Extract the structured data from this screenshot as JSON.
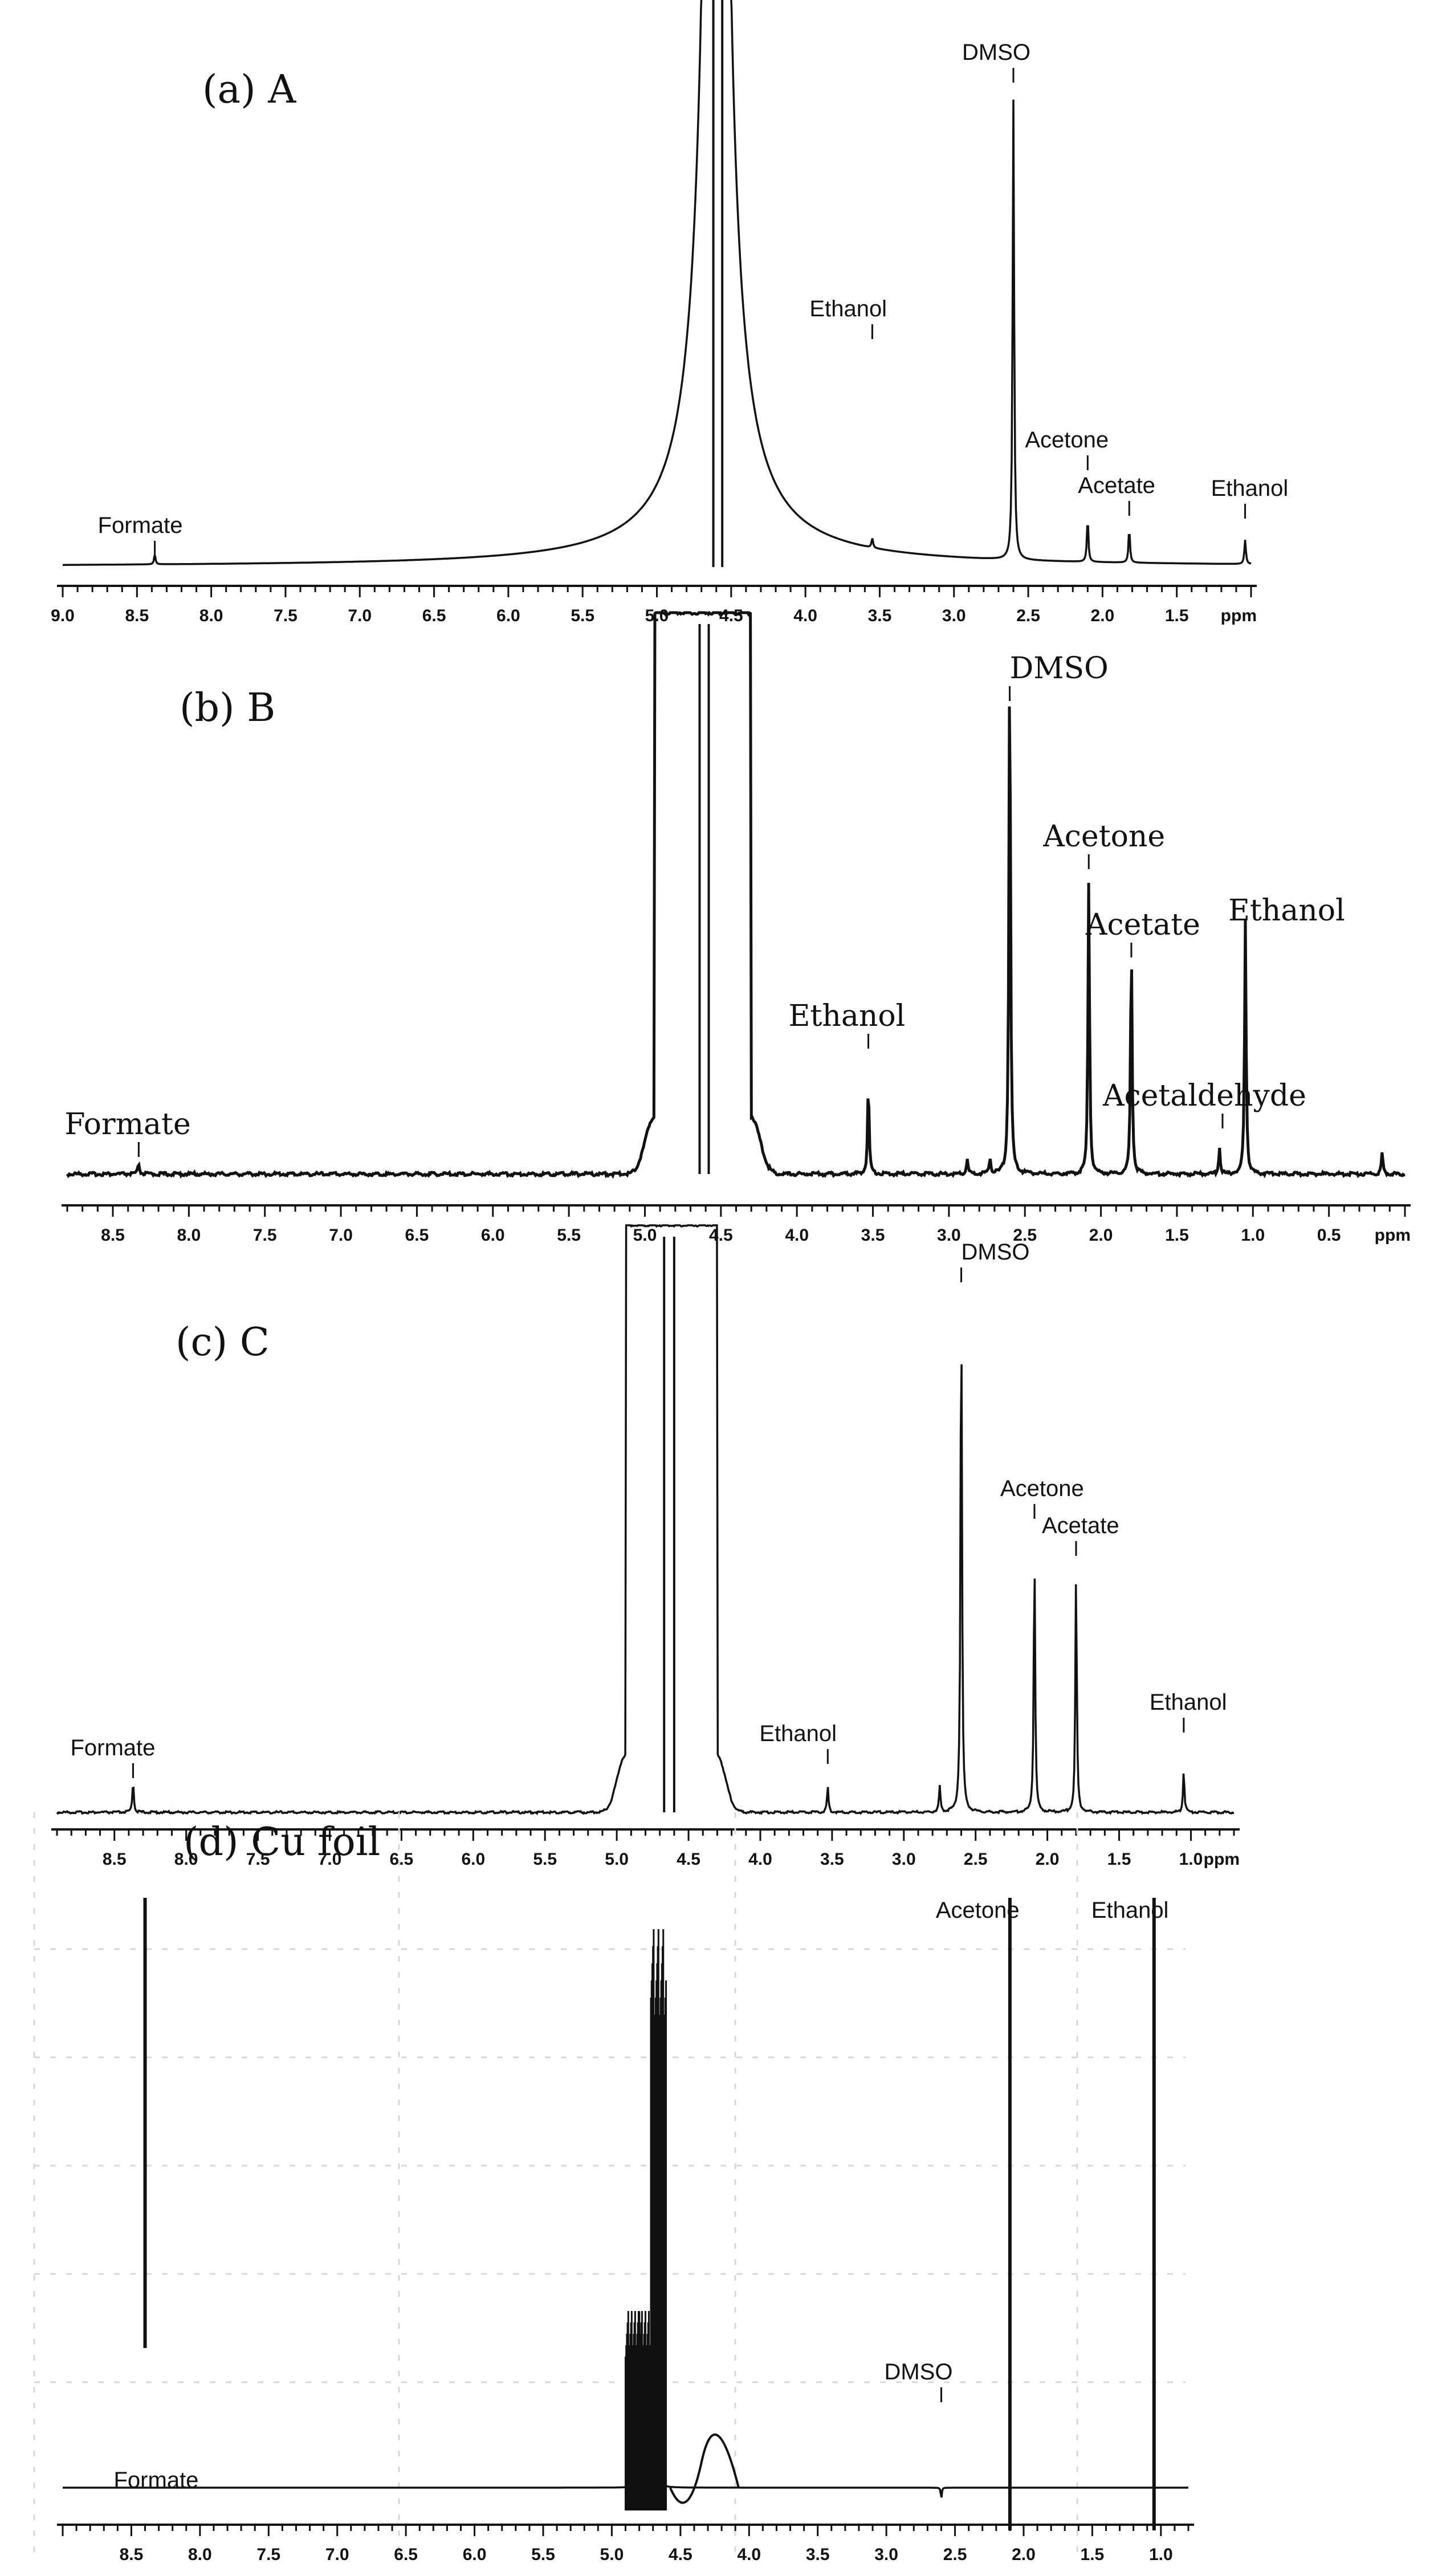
{
  "figure": {
    "panels": [
      {
        "id": "a",
        "label": "(a) A",
        "tick_unit": "ppm"
      },
      {
        "id": "b",
        "label": "(b) B",
        "tick_unit": "ppm"
      },
      {
        "id": "c",
        "label": "(c) C",
        "tick_unit": "ppm"
      },
      {
        "id": "d",
        "label": "(d) Cu foil",
        "tick_unit": ""
      }
    ]
  },
  "chart_data": [
    {
      "type": "line",
      "title": "(a) A",
      "xlabel": "ppm",
      "x_reversed": true,
      "xlim": [
        9.0,
        1.0
      ],
      "major_ticks": [
        9.0,
        8.5,
        8.0,
        7.5,
        7.0,
        6.5,
        6.0,
        5.5,
        5.0,
        4.5,
        4.0,
        3.5,
        3.0,
        2.5,
        2.0,
        1.5
      ],
      "water_peak_lines_ppm": [
        4.62,
        4.56
      ],
      "annotations": [
        {
          "text": "Formate",
          "x": 8.38
        },
        {
          "text": "Ethanol",
          "x": 3.55
        },
        {
          "text": "DMSO",
          "x": 2.6
        },
        {
          "text": "Acetone",
          "x": 2.1
        },
        {
          "text": "Acetate",
          "x": 1.82
        },
        {
          "text": "Ethanol",
          "x": 1.04
        }
      ],
      "peaks": [
        {
          "x": 8.38,
          "height": 0.02
        },
        {
          "x": 3.55,
          "height": 0.02
        },
        {
          "x": 2.6,
          "height": 0.95
        },
        {
          "x": 2.1,
          "height": 0.09
        },
        {
          "x": 1.82,
          "height": 0.07
        },
        {
          "x": 1.04,
          "height": 0.05
        }
      ]
    },
    {
      "type": "line",
      "title": "(b) B",
      "xlabel": "ppm",
      "x_reversed": true,
      "xlim": [
        8.8,
        0.0
      ],
      "major_ticks": [
        8.5,
        8.0,
        7.5,
        7.0,
        6.5,
        6.0,
        5.5,
        5.0,
        4.5,
        4.0,
        3.5,
        3.0,
        2.5,
        2.0,
        1.5,
        1.0,
        0.5
      ],
      "water_peak_lines_ppm": [
        4.64,
        4.58
      ],
      "annotations": [
        {
          "text": "Formate",
          "x": 8.33
        },
        {
          "text": "Ethanol",
          "x": 3.53
        },
        {
          "text": "DMSO",
          "x": 2.6
        },
        {
          "text": "Acetone",
          "x": 2.08
        },
        {
          "text": "Acetate",
          "x": 1.8
        },
        {
          "text": "Ethanol",
          "x": 1.05
        },
        {
          "text": "Acetaldehyde",
          "x": 1.2
        }
      ],
      "peaks": [
        {
          "x": 8.33,
          "height": 0.02
        },
        {
          "x": 3.53,
          "height": 0.17
        },
        {
          "x": 2.88,
          "height": 0.03
        },
        {
          "x": 2.73,
          "height": 0.03
        },
        {
          "x": 2.6,
          "height": 1.0
        },
        {
          "x": 2.08,
          "height": 0.55
        },
        {
          "x": 1.8,
          "height": 0.44
        },
        {
          "x": 1.22,
          "height": 0.05
        },
        {
          "x": 1.05,
          "height": 0.48
        },
        {
          "x": 0.15,
          "height": 0.04
        }
      ]
    },
    {
      "type": "line",
      "title": "(c) C",
      "xlabel": "ppm",
      "x_reversed": true,
      "xlim": [
        8.9,
        0.7
      ],
      "major_ticks": [
        8.5,
        8.0,
        7.5,
        7.0,
        6.5,
        6.0,
        5.5,
        5.0,
        4.5,
        4.0,
        3.5,
        3.0,
        2.5,
        2.0,
        1.5,
        1.0
      ],
      "water_peak_lines_ppm": [
        4.67,
        4.6
      ],
      "annotations": [
        {
          "text": "Formate",
          "x": 8.37
        },
        {
          "text": "Ethanol",
          "x": 3.53
        },
        {
          "text": "DMSO",
          "x": 2.6
        },
        {
          "text": "Acetone",
          "x": 2.09
        },
        {
          "text": "Acetate",
          "x": 1.8
        },
        {
          "text": "Ethanol",
          "x": 1.05
        }
      ],
      "peaks": [
        {
          "x": 8.37,
          "height": 0.06
        },
        {
          "x": 3.53,
          "height": 0.05
        },
        {
          "x": 2.75,
          "height": 0.05
        },
        {
          "x": 2.6,
          "height": 1.0
        },
        {
          "x": 2.09,
          "height": 0.5
        },
        {
          "x": 1.8,
          "height": 0.46
        },
        {
          "x": 1.05,
          "height": 0.08
        }
      ]
    },
    {
      "type": "line",
      "title": "(d) Cu foil",
      "xlabel": "",
      "x_reversed": true,
      "xlim": [
        9.0,
        0.8
      ],
      "major_ticks": [
        8.5,
        8.0,
        7.5,
        7.0,
        6.5,
        6.0,
        5.5,
        5.0,
        4.5,
        4.0,
        3.5,
        3.0,
        2.5,
        2.0,
        1.5,
        1.0
      ],
      "grid": true,
      "annotations": [
        {
          "text": "Formate",
          "x": 8.4
        },
        {
          "text": "Acetone",
          "x": 2.1
        },
        {
          "text": "Ethanol",
          "x": 1.05
        },
        {
          "text": "DMSO",
          "x": 2.6
        }
      ],
      "marker_lines_ppm": [
        8.4,
        2.1,
        1.05
      ],
      "peaks": [
        {
          "x": 4.68,
          "height": 0.95
        },
        {
          "x": 4.8,
          "height": 0.3
        },
        {
          "x": 2.6,
          "height": -0.02
        }
      ]
    }
  ]
}
